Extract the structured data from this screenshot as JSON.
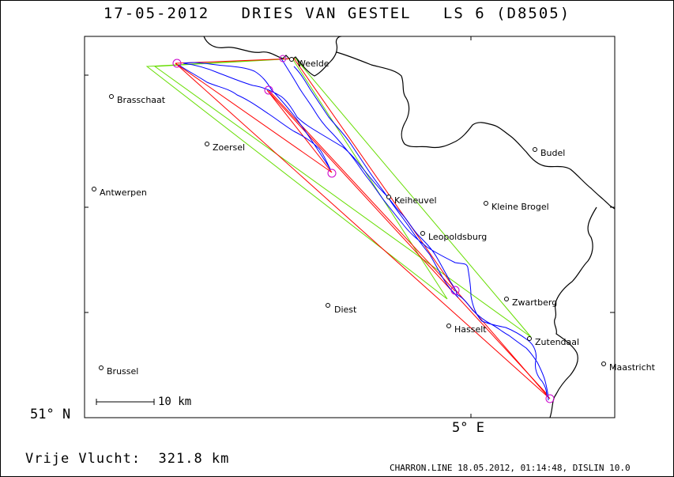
{
  "title": "17-05-2012   DRIES VAN GESTEL   LS 6 (D8505)",
  "axes": {
    "lat_label": "51° N",
    "lon_label": "5° E"
  },
  "scale": {
    "label": "10 km"
  },
  "footer": {
    "flight_label": "Vrije Vlucht:  321.8 km",
    "credit": "CHARRON.LINE 18.05.2012, 01:14:48, DISLIN 10.0"
  },
  "cities": [
    {
      "name": "Weelde"
    },
    {
      "name": "Brasschaat"
    },
    {
      "name": "Zoersel"
    },
    {
      "name": "Budel"
    },
    {
      "name": "Antwerpen"
    },
    {
      "name": "Keiheuvel"
    },
    {
      "name": "Kleine Brogel"
    },
    {
      "name": "Leopoldsburg"
    },
    {
      "name": "Zwartberg"
    },
    {
      "name": "Diest"
    },
    {
      "name": "Hasselt"
    },
    {
      "name": "Zutendaal"
    },
    {
      "name": "Maastricht"
    },
    {
      "name": "Brussel"
    }
  ],
  "colors": {
    "track": "#0000ff",
    "task_red": "#ff0000",
    "task_green": "#66dd00",
    "turnpoint": "#cc00cc",
    "border": "#000000"
  }
}
